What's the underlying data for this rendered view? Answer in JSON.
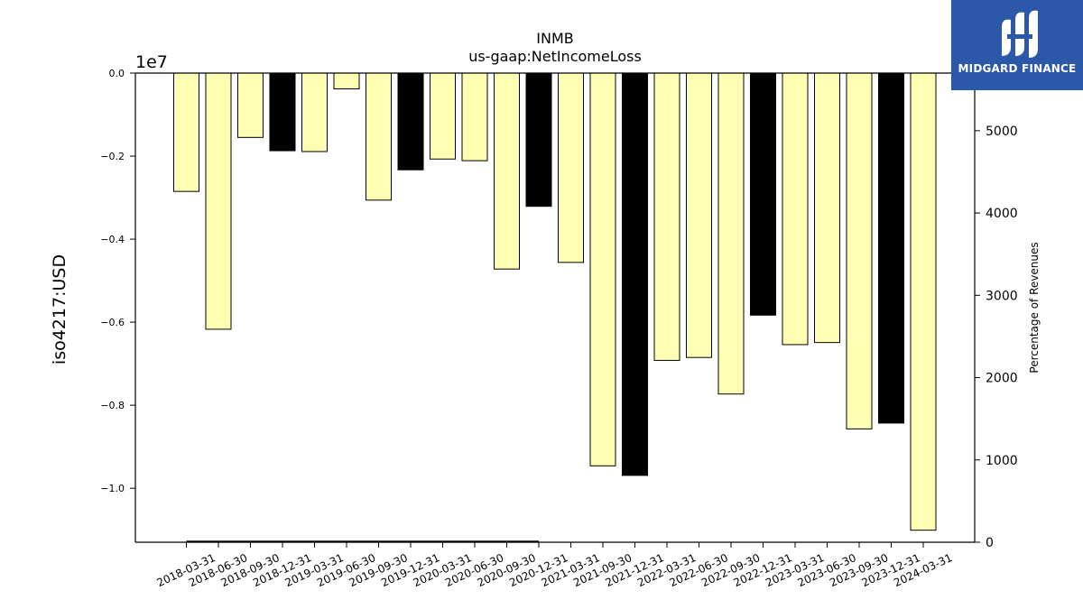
{
  "chart_data": {
    "type": "bar",
    "title": "INMB",
    "subtitle": "us-gaap:NetIncomeLoss",
    "ylabel": "iso4217:USD",
    "y_offset_label": "1e7",
    "y2label": "Percentage of Revenues",
    "ylim": [
      -11300000,
      0
    ],
    "y_ticks": [
      "0.0",
      "−0.2",
      "−0.4",
      "−0.6",
      "−0.8",
      "−1.0"
    ],
    "y_tick_values": [
      0,
      -2000000,
      -4000000,
      -6000000,
      -8000000,
      -10000000
    ],
    "y2lim": [
      0,
      5700
    ],
    "y2_ticks": [
      "0",
      "1000",
      "2000",
      "3000",
      "4000",
      "5000"
    ],
    "y2_tick_values": [
      0,
      1000,
      2000,
      3000,
      4000,
      5000
    ],
    "y2_series_line": {
      "from_category": 0,
      "to_category": 11,
      "value": 0
    },
    "categories": [
      "2018-03-31",
      "2018-06-30",
      "2018-09-30",
      "2018-12-31",
      "2019-03-31",
      "2019-06-30",
      "2019-09-30",
      "2019-12-31",
      "2020-03-31",
      "2020-06-30",
      "2020-09-30",
      "2020-12-31",
      "2021-03-31",
      "2021-09-30",
      "2021-12-31",
      "2022-03-31",
      "2022-06-30",
      "2022-09-30",
      "2022-12-31",
      "2023-03-31",
      "2023-06-30",
      "2023-09-30",
      "2023-12-31",
      "2024-03-31"
    ],
    "values": [
      -2850000,
      -6170000,
      -1550000,
      -1870000,
      -1890000,
      -380000,
      -3060000,
      -2330000,
      -2070000,
      -2110000,
      -4720000,
      -3210000,
      -4560000,
      -9460000,
      -9690000,
      -6920000,
      -6850000,
      -7730000,
      -5830000,
      -6540000,
      -6490000,
      -8570000,
      -8430000,
      -11010000
    ],
    "annual": [
      false,
      false,
      false,
      true,
      false,
      false,
      false,
      true,
      false,
      false,
      false,
      true,
      false,
      false,
      true,
      false,
      false,
      false,
      true,
      false,
      false,
      false,
      true,
      false
    ],
    "colors": {
      "quarter": "#ffffb3",
      "annual": "#000000",
      "edge": "#000000"
    },
    "grid": false
  },
  "logo": {
    "text": "MIDGARD FINANCE",
    "bg": "#2b58a8"
  }
}
